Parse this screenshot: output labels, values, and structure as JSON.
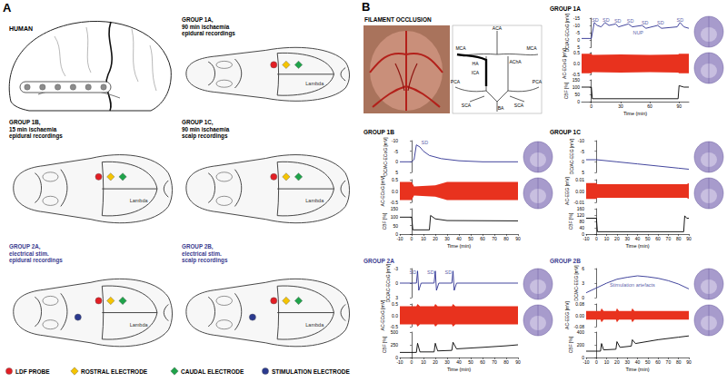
{
  "panel_A": {
    "label": "A",
    "human": {
      "title": "HUMAN",
      "electrodes": 6
    },
    "landmark": "Lambda",
    "groups": [
      {
        "lines": [
          "GROUP 1A,",
          "90 min ischaemia",
          "epidural recordings"
        ],
        "color": "#000000",
        "stimulation": false
      },
      {
        "lines": [
          "GROUP 1B,",
          "15 min ischaemia",
          "epidural recordings"
        ],
        "color": "#000000",
        "stimulation": false
      },
      {
        "lines": [
          "GROUP 1C,",
          "90 min ischaemia",
          "scalp recordings"
        ],
        "color": "#000000",
        "stimulation": false
      },
      {
        "lines": [
          "GROUP 2A,",
          "electrical stim.",
          "epidural recordings"
        ],
        "color": "#3b3b8f",
        "stimulation": true
      },
      {
        "lines": [
          "GROUP 2B,",
          "electrical stim.",
          "scalp recordings"
        ],
        "color": "#3b3b8f",
        "stimulation": true
      }
    ],
    "legend": [
      {
        "marker": "circle",
        "color": "#e31e24",
        "label": "LDF PROBE"
      },
      {
        "marker": "diamond",
        "color": "#f5c400",
        "label": "ROSTRAL ELECTRODE"
      },
      {
        "marker": "diamond",
        "color": "#1fa34a",
        "label": "CAUDAL ELECTRODE"
      },
      {
        "marker": "circle",
        "color": "#2b3a8f",
        "label": "STIMULATION ELECTRODE"
      }
    ]
  },
  "panel_B": {
    "label": "B",
    "occlusion": {
      "title": "FILAMENT OCCLUSION",
      "vessels": [
        "ACA",
        "MCA",
        "MCA",
        "AChA",
        "HA",
        "ICA",
        "PCA",
        "SCA",
        "SCA",
        "PCA",
        "BA"
      ]
    }
  },
  "chart_data": [
    {
      "type": "line",
      "title": "GROUP 1A",
      "color": "#000000",
      "x_label": "Time (min)",
      "xlim": [
        -10,
        100
      ],
      "xticks": [
        0,
        30,
        60,
        90
      ],
      "grid": false,
      "panels": [
        {
          "ylabel": "DC/AC-ECoG [mV]",
          "ylim": [
            5,
            -15
          ],
          "yticks": [
            -15,
            -10,
            -5,
            0,
            5
          ],
          "series": [
            {
              "type": "line",
              "color": "#2e3192",
              "x": [
                -10,
                0,
                3,
                6,
                10,
                14,
                18,
                25,
                28,
                38,
                42,
                52,
                56,
                68,
                72,
                88,
                91,
                95,
                100
              ],
              "values": [
                -1,
                -1,
                -12,
                -10,
                -9,
                -12,
                -10,
                -11,
                -9,
                -11,
                -9,
                -10,
                -8,
                -10,
                -8,
                -9,
                -12,
                -9,
                -8
              ]
            }
          ],
          "annotations": [
            {
              "text": "SD",
              "x": 4,
              "y": -14
            },
            {
              "text": "SD",
              "x": 15,
              "y": -14
            },
            {
              "text": "SD",
              "x": 27,
              "y": -13
            },
            {
              "text": "SD",
              "x": 40,
              "y": -13
            },
            {
              "text": "SD",
              "x": 55,
              "y": -12
            },
            {
              "text": "SD",
              "x": 71,
              "y": -12
            },
            {
              "text": "SD",
              "x": 91,
              "y": -14
            },
            {
              "text": "NUP",
              "x": 48,
              "y": -5
            }
          ]
        },
        {
          "ylabel": "AC-ECoG [mV]",
          "ylim": [
            -0.5,
            0.5
          ],
          "yticks": [
            -0.5,
            {
              "value": 0,
              "label": "0.0"
            },
            0.5
          ],
          "series": [
            {
              "type": "band",
              "color": "#e8321e",
              "x": [
                -10,
                0,
                1,
                30,
                60,
                89,
                90,
                100
              ],
              "lower": [
                -0.45,
                -0.45,
                -0.4,
                -0.42,
                -0.4,
                -0.42,
                -0.45,
                -0.45
              ],
              "upper": [
                0.45,
                0.45,
                0.4,
                0.42,
                0.4,
                0.42,
                0.45,
                0.45
              ]
            }
          ]
        },
        {
          "ylabel": "CBF [%]",
          "ylim": [
            0,
            150
          ],
          "yticks": [
            0,
            50,
            100,
            150
          ],
          "series": [
            {
              "type": "line",
              "color": "#000000",
              "x": [
                -10,
                0,
                1,
                89,
                90,
                95,
                100
              ],
              "values": [
                100,
                100,
                20,
                20,
                110,
                100,
                100
              ]
            }
          ]
        }
      ]
    },
    {
      "type": "line",
      "title": "GROUP 1B",
      "color": "#000000",
      "x_label": "Time (min)",
      "xlim": [
        -10,
        90
      ],
      "xticks": [
        -10,
        0,
        10,
        20,
        30,
        40,
        50,
        60,
        70,
        80,
        90
      ],
      "grid": false,
      "panels": [
        {
          "ylabel": "DC/AC-ECoG [mV]",
          "ylim": [
            5,
            -10
          ],
          "yticks": [
            -10,
            -5,
            0,
            5
          ],
          "series": [
            {
              "type": "line",
              "color": "#2e3192",
              "x": [
                -10,
                0,
                2,
                4,
                7,
                10,
                15,
                25,
                40,
                60,
                90
              ],
              "values": [
                0,
                0,
                -1,
                -8,
                -7,
                -5,
                -3,
                -1.5,
                -0.5,
                0,
                0
              ]
            }
          ],
          "annotations": [
            {
              "text": "SD",
              "x": 11,
              "y": -9
            }
          ]
        },
        {
          "ylabel": "AC-ECoG [mV]",
          "ylim": [
            -0.5,
            0.5
          ],
          "yticks": [
            -0.5,
            {
              "value": 0,
              "label": "0.0"
            },
            0.5
          ],
          "series": [
            {
              "type": "band",
              "color": "#e8321e",
              "x": [
                -10,
                0,
                2,
                20,
                30,
                90
              ],
              "lower": [
                -0.4,
                -0.4,
                -0.2,
                -0.25,
                -0.4,
                -0.4
              ],
              "upper": [
                0.4,
                0.4,
                0.2,
                0.25,
                0.4,
                0.4
              ]
            }
          ]
        },
        {
          "ylabel": "CBF [%]",
          "ylim": [
            0,
            150
          ],
          "yticks": [
            0,
            50,
            100,
            150
          ],
          "series": [
            {
              "type": "line",
              "color": "#000000",
              "x": [
                -10,
                0,
                1,
                15,
                16,
                20,
                30,
                90
              ],
              "values": [
                100,
                100,
                25,
                25,
                110,
                90,
                80,
                78
              ]
            }
          ]
        }
      ]
    },
    {
      "type": "line",
      "title": "GROUP 1C",
      "color": "#000000",
      "x_label": "Time (min)",
      "xlim": [
        -10,
        90
      ],
      "xticks": [
        -10,
        0,
        10,
        20,
        30,
        40,
        50,
        60,
        70,
        80,
        90
      ],
      "grid": false,
      "panels": [
        {
          "ylabel": "DC/AC-EEG [mV]",
          "ylim": [
            5,
            -10
          ],
          "yticks": [
            -10,
            -5,
            0,
            5
          ],
          "series": [
            {
              "type": "line",
              "color": "#2e3192",
              "x": [
                -10,
                0,
                20,
                40,
                60,
                80,
                90
              ],
              "values": [
                -1,
                -1,
                0,
                1,
                2,
                3,
                3.5
              ]
            }
          ]
        },
        {
          "ylabel": "AC-EEG [mV]",
          "ylim": [
            -0.01,
            0.01
          ],
          "yticks": [
            -0.01,
            {
              "value": 0,
              "label": "0.00"
            },
            0.01
          ],
          "series": [
            {
              "type": "band",
              "color": "#e8321e",
              "x": [
                -10,
                0,
                1,
                45,
                88,
                90
              ],
              "lower": [
                -0.007,
                -0.007,
                -0.006,
                -0.006,
                -0.006,
                -0.007
              ],
              "upper": [
                0.007,
                0.007,
                0.006,
                0.006,
                0.006,
                0.007
              ]
            }
          ]
        },
        {
          "ylabel": "CBF [%]",
          "ylim": [
            0,
            160
          ],
          "yticks": [
            0,
            40,
            80,
            120,
            160
          ],
          "series": [
            {
              "type": "line",
              "color": "#000000",
              "x": [
                -10,
                0,
                1,
                85,
                86,
                88,
                90
              ],
              "values": [
                100,
                100,
                15,
                15,
                115,
                100,
                100
              ]
            }
          ]
        }
      ]
    },
    {
      "type": "line",
      "title": "GROUP 2A",
      "color": "#3b3b8f",
      "x_label": "Time (min)",
      "xlim": [
        -10,
        90
      ],
      "xticks": [
        -10,
        0,
        10,
        20,
        30,
        40,
        50,
        60,
        70,
        80,
        90
      ],
      "grid": false,
      "panels": [
        {
          "ylabel": "DC/AC-ECoG [mV]",
          "ylim": [
            3,
            -3
          ],
          "yticks": [
            -3,
            0,
            3
          ],
          "series": [
            {
              "type": "line",
              "color": "#2e3192",
              "x": [
                -10,
                4,
                5,
                6,
                8,
                19,
                20,
                21,
                23,
                34,
                35,
                36,
                38,
                90
              ],
              "values": [
                0,
                0,
                -2.5,
                1.5,
                0,
                0,
                -2.5,
                1.5,
                0,
                0,
                -2.5,
                1.5,
                0,
                0
              ]
            }
          ],
          "annotations": [
            {
              "text": "SD",
              "x": 1,
              "y": -2.2
            },
            {
              "text": "SD",
              "x": 16,
              "y": -2.2
            },
            {
              "text": "SD",
              "x": 31,
              "y": -2.2
            }
          ]
        },
        {
          "ylabel": "AC-ECoG [mV]",
          "ylim": [
            -0.5,
            0.5
          ],
          "yticks": [
            -0.5,
            {
              "value": 0,
              "label": "0.0"
            },
            0.5
          ],
          "series": [
            {
              "type": "band",
              "color": "#e8321e",
              "x": [
                -10,
                4,
                5,
                7,
                19,
                20,
                22,
                34,
                35,
                37,
                90
              ],
              "lower": [
                -0.4,
                -0.4,
                -0.5,
                -0.4,
                -0.4,
                -0.5,
                -0.4,
                -0.4,
                -0.5,
                -0.4,
                -0.4
              ],
              "upper": [
                0.4,
                0.4,
                0.5,
                0.4,
                0.4,
                0.5,
                0.4,
                0.4,
                0.5,
                0.4,
                0.4
              ]
            }
          ]
        },
        {
          "ylabel": "CBF [%]",
          "ylim": [
            0,
            500
          ],
          "yticks": [
            0,
            250,
            500
          ],
          "series": [
            {
              "type": "line",
              "color": "#000000",
              "x": [
                -10,
                4,
                5,
                7,
                19,
                20,
                22,
                34,
                35,
                38,
                60,
                80,
                90
              ],
              "values": [
                100,
                100,
                280,
                110,
                110,
                280,
                130,
                140,
                300,
                170,
                200,
                230,
                250
              ]
            }
          ]
        }
      ]
    },
    {
      "type": "line",
      "title": "GROUP 2B",
      "color": "#3b3b8f",
      "x_label": "Time (min)",
      "xlim": [
        -10,
        90
      ],
      "xticks": [
        -10,
        0,
        10,
        20,
        30,
        40,
        50,
        60,
        70,
        80,
        90
      ],
      "grid": false,
      "panels": [
        {
          "ylabel": "DC/AC-EEG [mV]",
          "ylim": [
            0,
            6
          ],
          "yticks": [
            0,
            3,
            6
          ],
          "series": [
            {
              "type": "line",
              "color": "#2e3192",
              "x": [
                -10,
                0,
                10,
                20,
                30,
                40,
                50,
                60,
                70,
                80,
                90
              ],
              "values": [
                1,
                2,
                3,
                3.8,
                4.2,
                4.5,
                4.3,
                4,
                3.5,
                2.8,
                1.8
              ]
            }
          ],
          "annotations": [
            {
              "text": "Stimulation artefacts",
              "x": 35,
              "y": 2.6
            }
          ]
        },
        {
          "ylabel": "AC-EEG [mV]",
          "ylim": [
            -0.08,
            0.08
          ],
          "yticks": [
            -0.08,
            {
              "value": 0,
              "label": "0.00"
            },
            0.08
          ],
          "series": [
            {
              "type": "band",
              "color": "#e8321e",
              "x": [
                -10,
                4,
                5,
                7,
                19,
                20,
                22,
                34,
                35,
                37,
                90
              ],
              "lower": [
                -0.03,
                -0.03,
                -0.05,
                -0.03,
                -0.03,
                -0.05,
                -0.03,
                -0.03,
                -0.05,
                -0.03,
                -0.03
              ],
              "upper": [
                0.03,
                0.03,
                0.05,
                0.03,
                0.03,
                0.05,
                0.03,
                0.03,
                0.05,
                0.03,
                0.03
              ]
            }
          ]
        },
        {
          "ylabel": "CBF [%]",
          "ylim": [
            0,
            400
          ],
          "yticks": [
            0,
            200,
            400
          ],
          "series": [
            {
              "type": "line",
              "color": "#000000",
              "x": [
                -10,
                4,
                5,
                7,
                19,
                20,
                23,
                34,
                35,
                38,
                60,
                80,
                90
              ],
              "values": [
                100,
                100,
                220,
                120,
                130,
                250,
                160,
                180,
                280,
                220,
                280,
                320,
                340
              ]
            }
          ]
        }
      ]
    }
  ]
}
